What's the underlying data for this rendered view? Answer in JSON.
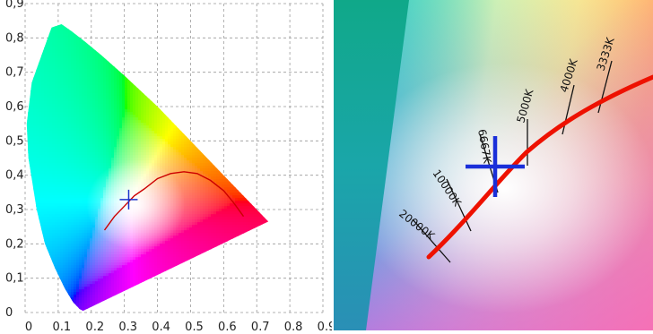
{
  "chart_data": [
    {
      "type": "line",
      "title": "",
      "xlabel": "",
      "ylabel": "",
      "xlim": [
        0,
        0.9
      ],
      "ylim": [
        0,
        0.9
      ],
      "x_tick_labels": [
        "0",
        "0,1",
        "0,2",
        "0,3",
        "0,4",
        "0,5",
        "0,6",
        "0,7",
        "0,8",
        "0,9"
      ],
      "y_tick_labels": [
        "0",
        "0,1",
        "0,2",
        "0,3",
        "0,4",
        "0,5",
        "0,6",
        "0,7",
        "0,8",
        "0,9"
      ],
      "grid": true,
      "series": [
        {
          "color": "#cc0000",
          "x": [
            0.24,
            0.27,
            0.3,
            0.33,
            0.36,
            0.4,
            0.44,
            0.48,
            0.52,
            0.56,
            0.6,
            0.63,
            0.66
          ],
          "y": [
            0.24,
            0.28,
            0.31,
            0.34,
            0.36,
            0.39,
            0.405,
            0.41,
            0.405,
            0.385,
            0.355,
            0.32,
            0.28
          ]
        }
      ],
      "marker": {
        "x": 0.313,
        "y": 0.329,
        "color": "#1a33cc"
      },
      "gamut_outline": {
        "x": [
          0.175,
          0.165,
          0.145,
          0.12,
          0.09,
          0.06,
          0.035,
          0.01,
          0.005,
          0.02,
          0.05,
          0.08,
          0.11,
          0.14,
          0.18,
          0.23,
          0.3,
          0.4,
          0.5,
          0.6,
          0.735,
          0.175
        ],
        "y": [
          0.005,
          0.01,
          0.03,
          0.07,
          0.13,
          0.2,
          0.3,
          0.45,
          0.55,
          0.67,
          0.75,
          0.83,
          0.84,
          0.82,
          0.79,
          0.75,
          0.69,
          0.6,
          0.5,
          0.4,
          0.265,
          0.005
        ]
      }
    },
    {
      "type": "line",
      "title": "",
      "series": [
        {
          "color": "#ee1100"
        }
      ],
      "isotherm_labels": [
        "20000K",
        "10000K",
        "6667K",
        "5000K",
        "4000K",
        "3333K"
      ],
      "marker": {
        "color": "#1a2fd9"
      }
    }
  ]
}
